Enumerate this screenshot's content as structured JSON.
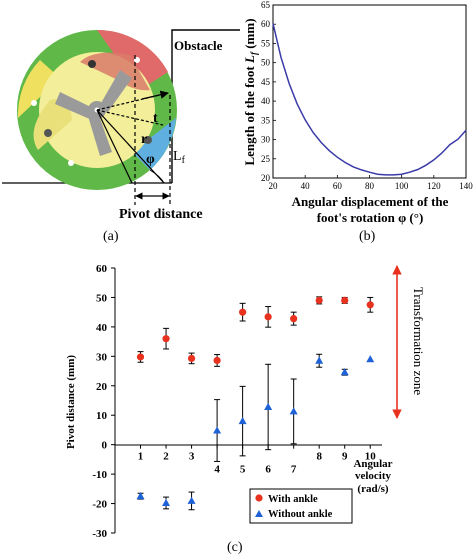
{
  "panel_a": {
    "caption": "(a)",
    "labels": {
      "obstacle": "Obstacle",
      "t": "t",
      "r": "r",
      "phi": "φ",
      "lf": "L",
      "lf_sub": "f",
      "pivot": "Pivot distance"
    }
  },
  "panel_b": {
    "caption": "(b)"
  },
  "panel_c": {
    "caption": "(c)",
    "zone_label": "Transformation zone"
  },
  "colors": {
    "ankle": "#e8321f",
    "without": "#1f62d8",
    "curve": "#3a3aa8",
    "zone": "#e8321f"
  },
  "chart_data": [
    {
      "type": "line",
      "ylabel_prefix": "Length of the foot ",
      "ylabel_var": "L",
      "ylabel_sub": "f",
      "ylabel_suffix": " (mm)",
      "xlabel_line1": "Angular displacement of the",
      "xlabel_line2": "foot's rotation φ (°)",
      "xlim": [
        20,
        140
      ],
      "ylim": [
        20,
        65
      ],
      "xticks": [
        20,
        40,
        60,
        80,
        100,
        120,
        140
      ],
      "yticks": [
        20,
        25,
        30,
        35,
        40,
        45,
        50,
        55,
        60,
        65
      ],
      "x": [
        20,
        25,
        30,
        35,
        40,
        45,
        50,
        55,
        60,
        65,
        70,
        75,
        80,
        85,
        90,
        95,
        100,
        105,
        110,
        115,
        120,
        125,
        130,
        135,
        140
      ],
      "y": [
        60.2,
        51.4,
        44.6,
        39.3,
        35.1,
        31.8,
        29.2,
        27.1,
        25.4,
        24.0,
        22.9,
        22.1,
        21.5,
        21.0,
        20.8,
        20.8,
        21.0,
        21.5,
        22.2,
        23.3,
        24.7,
        26.5,
        28.7,
        30.1,
        32.4
      ]
    },
    {
      "type": "scatter",
      "ylabel": "Pivot distance (mm)",
      "xlabel_lines": [
        "Angular",
        "velocity",
        "(rad/s)"
      ],
      "xlim": [
        0,
        10.5
      ],
      "ylim": [
        -30,
        60
      ],
      "yticks": [
        -30,
        -20,
        -10,
        0,
        10,
        20,
        30,
        40,
        50,
        60
      ],
      "xtick_labels": [
        "1",
        "2",
        "3",
        "4",
        "5",
        "6",
        "7",
        "8",
        "9",
        "10"
      ],
      "grid": false,
      "legend_position": "bottom-right",
      "series": [
        {
          "name": "With ankle",
          "marker": "circle",
          "x": [
            1,
            2,
            3,
            4,
            5,
            6,
            7,
            8,
            9,
            10
          ],
          "y": [
            29.8,
            36,
            29.3,
            28.6,
            45,
            43.4,
            42.8,
            49,
            49,
            47.5
          ],
          "err": [
            1.8,
            3.5,
            1.8,
            2,
            3,
            3.5,
            2.2,
            1.2,
            1,
            2.5
          ]
        },
        {
          "name": "Without ankle",
          "marker": "triangle",
          "x": [
            1,
            2,
            3,
            4,
            5,
            6,
            7,
            8,
            9,
            10
          ],
          "y": [
            -17.5,
            -19.8,
            -19.1,
            4.8,
            8,
            12.8,
            11.3,
            28.5,
            24.6,
            29
          ],
          "err": [
            1,
            2,
            3,
            10.5,
            11.8,
            14.5,
            11,
            2.2,
            1,
            0
          ]
        }
      ]
    }
  ]
}
